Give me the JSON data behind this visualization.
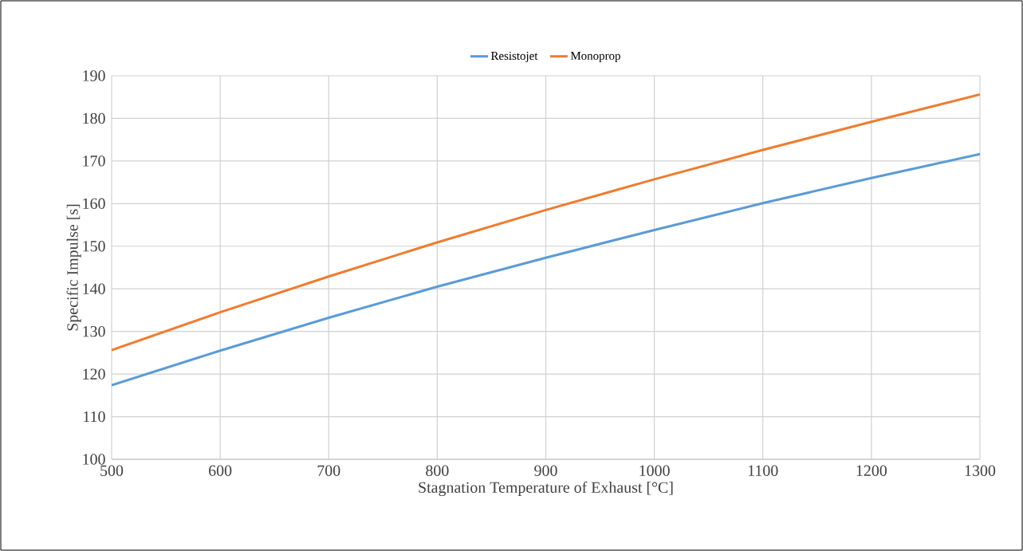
{
  "chart_data": {
    "type": "line",
    "xlabel": "Stagnation Temperature of Exhaust [°C]",
    "ylabel": "Specific Impulse [s]",
    "x": [
      500,
      600,
      700,
      800,
      900,
      1000,
      1100,
      1200,
      1300
    ],
    "series": [
      {
        "name": "Resistojet",
        "color": "#5b9bd5",
        "values": [
          117.4,
          125.5,
          133.2,
          140.5,
          147.3,
          153.8,
          160.1,
          166.0,
          171.6
        ]
      },
      {
        "name": "Monoprop",
        "color": "#ed7d31",
        "values": [
          125.6,
          134.5,
          142.9,
          150.9,
          158.5,
          165.7,
          172.6,
          179.2,
          185.6
        ]
      }
    ],
    "xlim": [
      500,
      1300
    ],
    "ylim": [
      100,
      190
    ],
    "xticks": [
      500,
      600,
      700,
      800,
      900,
      1000,
      1100,
      1200,
      1300
    ],
    "yticks": [
      100,
      110,
      120,
      130,
      140,
      150,
      160,
      170,
      180,
      190
    ],
    "grid": true,
    "legend": "top",
    "marker": "none",
    "line_style": "solid"
  }
}
